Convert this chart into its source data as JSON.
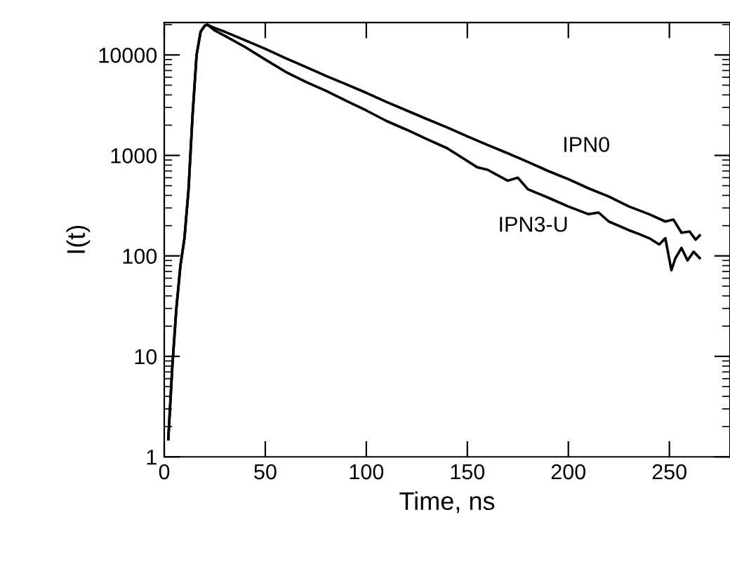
{
  "chart_data": {
    "type": "line",
    "xlabel": "Time, ns",
    "ylabel": "I(t)",
    "log": "y",
    "xlim": [
      0,
      280
    ],
    "xticks": [
      0,
      50,
      100,
      150,
      200,
      250
    ],
    "ylim": [
      1,
      21000
    ],
    "yticks": [
      1,
      10,
      100,
      1000,
      10000
    ],
    "grid": false,
    "legend": false,
    "marker": "none",
    "line_style": "solid",
    "series": [
      {
        "name": "IPN0",
        "color": "#000000",
        "x": [
          2,
          4,
          6,
          8,
          10,
          12,
          14,
          16,
          18,
          20,
          21.3,
          25,
          30,
          40,
          50,
          60,
          70,
          80,
          90,
          100,
          110,
          120,
          130,
          140,
          150,
          160,
          170,
          180,
          190,
          200,
          210,
          220,
          230,
          240,
          248,
          252,
          256,
          260,
          263,
          265
        ],
        "values": [
          1.5,
          8,
          30,
          80,
          150,
          450,
          2500,
          10000,
          17000,
          19500,
          20000,
          18500,
          17000,
          14000,
          11500,
          9300,
          7600,
          6200,
          5100,
          4200,
          3400,
          2800,
          2300,
          1900,
          1550,
          1270,
          1050,
          860,
          700,
          580,
          470,
          390,
          310,
          260,
          220,
          230,
          170,
          175,
          145,
          160
        ]
      },
      {
        "name": "IPN3-U",
        "color": "#000000",
        "x": [
          2,
          4,
          6,
          8,
          10,
          12,
          14,
          16,
          18,
          20,
          21.3,
          25,
          30,
          40,
          50,
          60,
          70,
          80,
          90,
          100,
          110,
          120,
          130,
          140,
          150,
          155,
          160,
          170,
          175,
          180,
          190,
          200,
          210,
          215,
          220,
          230,
          235,
          240,
          245,
          248,
          251,
          253,
          256,
          259,
          262,
          265
        ],
        "values": [
          1.5,
          8,
          30,
          80,
          150,
          450,
          2500,
          10000,
          17000,
          19500,
          20000,
          17500,
          15500,
          12000,
          9000,
          6800,
          5400,
          4400,
          3500,
          2800,
          2200,
          1800,
          1450,
          1180,
          880,
          760,
          720,
          560,
          600,
          460,
          380,
          310,
          260,
          270,
          220,
          180,
          165,
          150,
          130,
          150,
          72,
          95,
          120,
          90,
          110,
          95
        ]
      }
    ]
  }
}
